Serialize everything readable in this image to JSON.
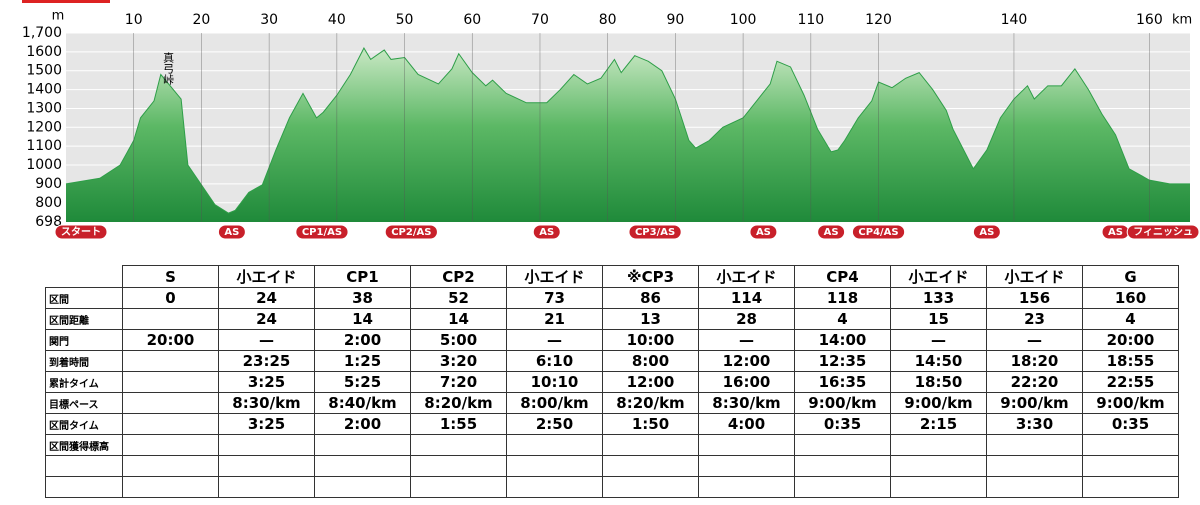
{
  "chart_data": {
    "type": "area",
    "y_label": "m",
    "x_label": "km",
    "color": "#2e9e48",
    "annotation": "真弓峠",
    "annotation_x": 15,
    "annotation_y": 1600,
    "xlim": [
      0,
      166
    ],
    "ylim": [
      698,
      1700
    ],
    "xticks": [
      10,
      20,
      30,
      40,
      50,
      60,
      70,
      80,
      90,
      100,
      110,
      120,
      140,
      160
    ],
    "yticks": [
      698,
      800,
      900,
      1000,
      1100,
      1200,
      1300,
      1400,
      1500,
      1600,
      {
        "value": 1700,
        "label": "1,700"
      }
    ],
    "grid": true,
    "x": [
      0,
      5,
      8,
      10,
      11,
      13,
      14,
      17,
      18,
      22,
      24,
      25,
      27,
      29,
      31,
      33,
      35,
      37,
      38,
      40,
      42,
      44,
      45,
      47,
      48,
      50,
      52,
      55,
      57,
      58,
      60,
      62,
      63,
      65,
      68,
      71,
      73,
      75,
      77,
      79,
      81,
      82,
      84,
      86,
      88,
      90,
      92,
      93,
      95,
      97,
      100,
      102,
      104,
      105,
      107,
      109,
      111,
      113,
      114,
      115,
      117,
      119,
      120,
      122,
      124,
      126,
      128,
      130,
      131,
      133,
      134,
      136,
      138,
      140,
      142,
      143,
      145,
      147,
      149,
      151,
      153,
      155,
      157,
      160,
      163,
      166
    ],
    "values": [
      900,
      930,
      1000,
      1130,
      1250,
      1340,
      1480,
      1350,
      1000,
      790,
      745,
      760,
      855,
      895,
      1080,
      1250,
      1380,
      1250,
      1280,
      1370,
      1480,
      1620,
      1560,
      1610,
      1560,
      1570,
      1480,
      1430,
      1510,
      1590,
      1490,
      1420,
      1450,
      1380,
      1330,
      1330,
      1400,
      1480,
      1430,
      1460,
      1560,
      1490,
      1580,
      1550,
      1500,
      1350,
      1130,
      1090,
      1130,
      1200,
      1250,
      1340,
      1430,
      1550,
      1520,
      1370,
      1190,
      1070,
      1080,
      1130,
      1250,
      1340,
      1440,
      1410,
      1460,
      1490,
      1400,
      1290,
      1190,
      1050,
      980,
      1080,
      1250,
      1350,
      1420,
      1350,
      1420,
      1420,
      1510,
      1400,
      1270,
      1160,
      980,
      920,
      900,
      900
    ],
    "markers": [
      {
        "label": "スタート",
        "x": 0
      },
      {
        "label": "AS",
        "x": 24.5
      },
      {
        "label": "CP1/AS",
        "x": 37.8
      },
      {
        "label": "CP2/AS",
        "x": 51
      },
      {
        "label": "AS",
        "x": 71
      },
      {
        "label": "CP3/AS",
        "x": 87
      },
      {
        "label": "AS",
        "x": 103
      },
      {
        "label": "AS",
        "x": 113
      },
      {
        "label": "CP4/AS",
        "x": 120
      },
      {
        "label": "AS",
        "x": 136
      },
      {
        "label": "AS",
        "x": 155
      },
      {
        "label": "フィニッシュ",
        "x": 166
      }
    ]
  },
  "table": {
    "header": [
      "S",
      "小エイド",
      "CP1",
      "CP2",
      "小エイド",
      "※CP3",
      "小エイド",
      "CP4",
      "小エイド",
      "小エイド",
      "G"
    ],
    "rows": [
      {
        "label": "区間",
        "cells": [
          0,
          24,
          38,
          52,
          73,
          86,
          114,
          118,
          133,
          156,
          160
        ]
      },
      {
        "label": "区間距離",
        "cells": [
          null,
          24,
          14,
          14,
          21,
          13,
          28,
          4,
          15,
          23,
          4
        ]
      },
      {
        "label": "関門",
        "cells": [
          "20:00",
          "—",
          "2:00",
          "5:00",
          "—",
          "10:00",
          "—",
          "14:00",
          "—",
          "—",
          "20:00"
        ]
      },
      {
        "label": "到着時間",
        "cells": [
          null,
          "23:25",
          "1:25",
          "3:20",
          "6:10",
          "8:00",
          "12:00",
          "12:35",
          "14:50",
          "18:20",
          "18:55"
        ]
      },
      {
        "label": "累計タイム",
        "cells": [
          null,
          "3:25",
          "5:25",
          "7:20",
          "10:10",
          "12:00",
          "16:00",
          "16:35",
          "18:50",
          "22:20",
          "22:55"
        ]
      },
      {
        "label": "目標ペース",
        "cells": [
          null,
          "8:30/km",
          "8:40/km",
          "8:20/km",
          "8:00/km",
          "8:20/km",
          "8:30/km",
          "9:00/km",
          "9:00/km",
          "9:00/km",
          "9:00/km"
        ]
      },
      {
        "label": "区間タイム",
        "cells": [
          null,
          "3:25",
          "2:00",
          "1:55",
          "2:50",
          "1:50",
          "4:00",
          "0:35",
          "2:15",
          "3:30",
          "0:35"
        ]
      },
      {
        "label": "区間獲得標高",
        "cells": [
          null,
          null,
          null,
          null,
          null,
          null,
          null,
          null,
          null,
          null,
          null
        ]
      }
    ]
  }
}
